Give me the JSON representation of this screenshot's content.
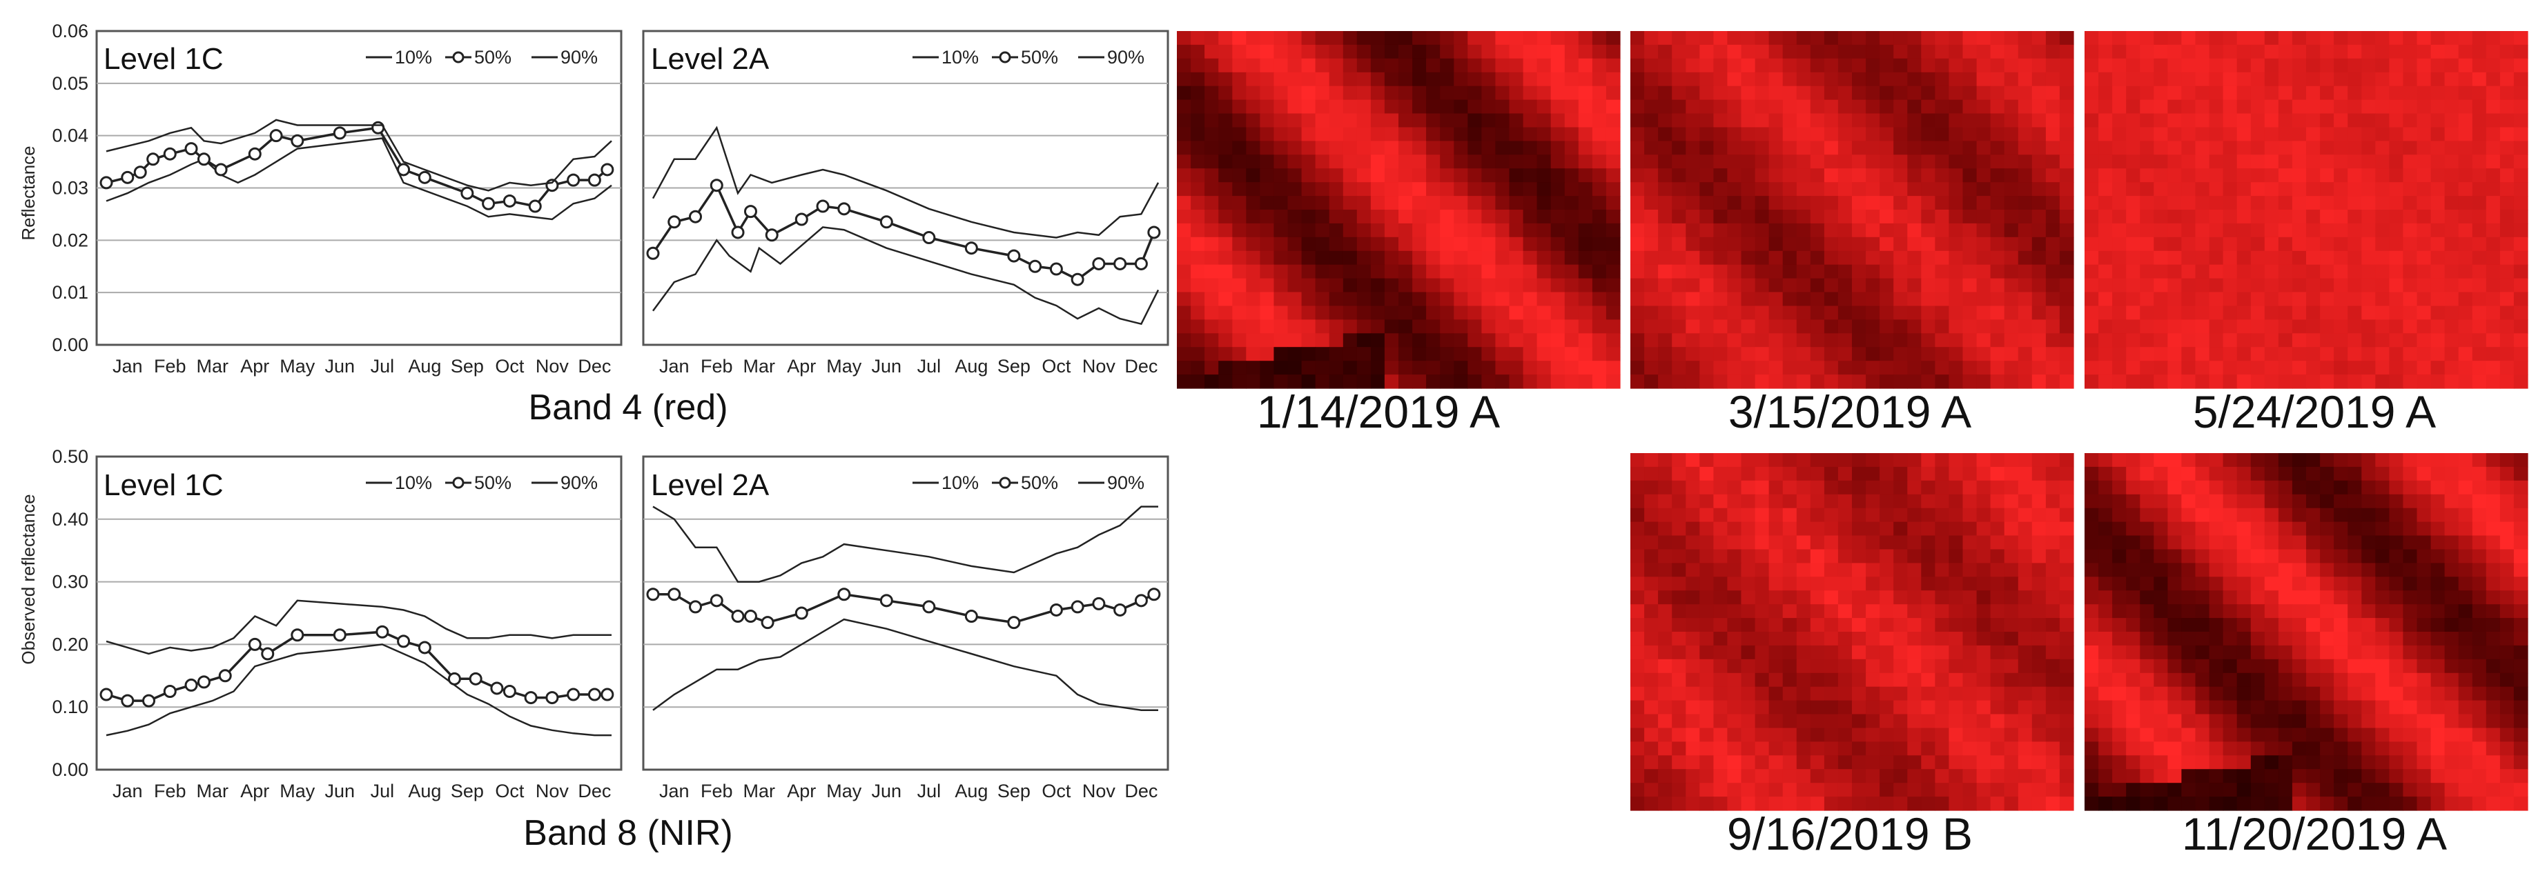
{
  "chart_data": [
    {
      "type": "line",
      "title": "Level 1C",
      "band": "Band 4 (red)",
      "ylabel": "Reflectance",
      "ylim": [
        0,
        0.06
      ],
      "yticks": [
        0.0,
        0.01,
        0.02,
        0.03,
        0.04,
        0.05,
        0.06
      ],
      "ytick_labels": [
        "0.00",
        "0.01",
        "0.02",
        "0.03",
        "0.04",
        "0.05",
        "0.06"
      ],
      "xlim": [
        0.5,
        12.4
      ],
      "xtick_labels": [
        "Jan",
        "Feb",
        "Mar",
        "Apr",
        "May",
        "Jun",
        "Jul",
        "Aug",
        "Sep",
        "Oct",
        "Nov",
        "Dec"
      ],
      "legend": [
        "10%",
        "50%",
        "90%"
      ],
      "series": [
        {
          "name": "10%",
          "x": [
            0.5,
            1.0,
            1.5,
            2.0,
            2.5,
            2.8,
            3.2,
            3.6,
            4.0,
            4.5,
            5.0,
            6.0,
            7.0,
            7.5,
            8.0,
            8.5,
            9.0,
            9.5,
            10.0,
            10.5,
            11.0,
            11.5,
            12.0,
            12.4
          ],
          "y": [
            0.0275,
            0.029,
            0.031,
            0.0325,
            0.0345,
            0.0355,
            0.0325,
            0.031,
            0.0325,
            0.035,
            0.0375,
            0.0385,
            0.0395,
            0.031,
            0.0295,
            0.028,
            0.0265,
            0.0245,
            0.025,
            0.0245,
            0.024,
            0.027,
            0.028,
            0.0305
          ]
        },
        {
          "name": "50%",
          "x": [
            0.5,
            1.0,
            1.3,
            1.6,
            2.0,
            2.5,
            2.8,
            3.2,
            4.0,
            4.5,
            5.0,
            6.0,
            6.9,
            7.5,
            8.0,
            9.0,
            9.5,
            10.0,
            10.6,
            11.0,
            11.5,
            12.0,
            12.3
          ],
          "y": [
            0.031,
            0.032,
            0.033,
            0.0355,
            0.0365,
            0.0375,
            0.0355,
            0.0335,
            0.0365,
            0.04,
            0.039,
            0.0405,
            0.0415,
            0.0335,
            0.032,
            0.029,
            0.027,
            0.0275,
            0.0265,
            0.0305,
            0.0315,
            0.0315,
            0.0335
          ],
          "markers": true
        },
        {
          "name": "90%",
          "x": [
            0.5,
            1.0,
            1.5,
            2.0,
            2.5,
            2.8,
            3.2,
            4.0,
            4.5,
            5.0,
            6.0,
            7.0,
            7.5,
            8.0,
            9.0,
            9.5,
            10.0,
            10.5,
            11.0,
            11.5,
            12.0,
            12.4
          ],
          "y": [
            0.037,
            0.038,
            0.039,
            0.0405,
            0.0415,
            0.039,
            0.0385,
            0.0405,
            0.043,
            0.042,
            0.042,
            0.042,
            0.035,
            0.0335,
            0.0305,
            0.0295,
            0.031,
            0.0305,
            0.031,
            0.0355,
            0.036,
            0.039
          ]
        }
      ]
    },
    {
      "type": "line",
      "title": "Level 2A",
      "band": "Band 4 (red)",
      "ylim": [
        0,
        0.06
      ],
      "yticks": [
        0.0,
        0.01,
        0.02,
        0.03,
        0.04,
        0.05,
        0.06
      ],
      "xlim": [
        0.5,
        12.4
      ],
      "xtick_labels": [
        "Jan",
        "Feb",
        "Mar",
        "Apr",
        "May",
        "Jun",
        "Jul",
        "Aug",
        "Sep",
        "Oct",
        "Nov",
        "Dec"
      ],
      "legend": [
        "10%",
        "50%",
        "90%"
      ],
      "series": [
        {
          "name": "10%",
          "x": [
            0.5,
            1.0,
            1.5,
            2.0,
            2.3,
            2.8,
            3.0,
            3.5,
            4.0,
            4.5,
            5.0,
            6.0,
            7.0,
            8.0,
            9.0,
            9.5,
            10.0,
            10.5,
            11.0,
            11.5,
            12.0,
            12.4
          ],
          "y": [
            0.0065,
            0.012,
            0.0135,
            0.02,
            0.017,
            0.014,
            0.0185,
            0.0155,
            0.019,
            0.0225,
            0.022,
            0.0185,
            0.016,
            0.0135,
            0.0115,
            0.009,
            0.0075,
            0.005,
            0.007,
            0.005,
            0.004,
            0.0105
          ]
        },
        {
          "name": "50%",
          "x": [
            0.5,
            1.0,
            1.5,
            2.0,
            2.5,
            2.8,
            3.3,
            4.0,
            4.5,
            5.0,
            6.0,
            7.0,
            8.0,
            9.0,
            9.5,
            10.0,
            10.5,
            11.0,
            11.5,
            12.0,
            12.3
          ],
          "y": [
            0.0175,
            0.0235,
            0.0245,
            0.0305,
            0.0215,
            0.0255,
            0.021,
            0.024,
            0.0265,
            0.026,
            0.0235,
            0.0205,
            0.0185,
            0.017,
            0.015,
            0.0145,
            0.0125,
            0.0155,
            0.0155,
            0.0155,
            0.0215
          ],
          "markers": true
        },
        {
          "name": "90%",
          "x": [
            0.5,
            1.0,
            1.5,
            2.0,
            2.5,
            2.8,
            3.3,
            4.0,
            4.5,
            5.0,
            6.0,
            7.0,
            8.0,
            9.0,
            9.5,
            10.0,
            10.5,
            11.0,
            11.5,
            12.0,
            12.4
          ],
          "y": [
            0.028,
            0.0355,
            0.0355,
            0.0415,
            0.029,
            0.0325,
            0.031,
            0.0325,
            0.0335,
            0.0325,
            0.0295,
            0.026,
            0.0235,
            0.0215,
            0.021,
            0.0205,
            0.0215,
            0.021,
            0.0245,
            0.025,
            0.031
          ]
        }
      ]
    },
    {
      "type": "line",
      "title": "Level 1C",
      "band": "Band 8 (NIR)",
      "ylabel": "Observed reflectance",
      "ylim": [
        0,
        0.5
      ],
      "yticks": [
        0.0,
        0.1,
        0.2,
        0.3,
        0.4,
        0.5
      ],
      "ytick_labels": [
        "0.00",
        "0.10",
        "0.20",
        "0.30",
        "0.40",
        "0.50"
      ],
      "xlim": [
        0.5,
        12.4
      ],
      "xtick_labels": [
        "Jan",
        "Feb",
        "Mar",
        "Apr",
        "May",
        "Jun",
        "Jul",
        "Aug",
        "Sep",
        "Oct",
        "Nov",
        "Dec"
      ],
      "legend": [
        "10%",
        "50%",
        "90%"
      ],
      "series": [
        {
          "name": "10%",
          "x": [
            0.5,
            1.0,
            1.5,
            2.0,
            2.5,
            3.0,
            3.5,
            4.0,
            4.5,
            5.0,
            6.0,
            7.0,
            7.5,
            8.0,
            8.5,
            9.0,
            9.5,
            10.0,
            10.5,
            11.0,
            11.5,
            12.0,
            12.4
          ],
          "y": [
            0.055,
            0.062,
            0.072,
            0.09,
            0.1,
            0.11,
            0.125,
            0.165,
            0.175,
            0.185,
            0.192,
            0.2,
            0.185,
            0.17,
            0.145,
            0.12,
            0.105,
            0.085,
            0.07,
            0.063,
            0.058,
            0.055,
            0.055
          ]
        },
        {
          "name": "50%",
          "x": [
            0.5,
            1.0,
            1.5,
            2.0,
            2.5,
            2.8,
            3.3,
            4.0,
            4.3,
            5.0,
            6.0,
            7.0,
            7.5,
            8.0,
            8.7,
            9.2,
            9.7,
            10.0,
            10.5,
            11.0,
            11.5,
            12.0,
            12.3
          ],
          "y": [
            0.12,
            0.11,
            0.11,
            0.125,
            0.135,
            0.14,
            0.15,
            0.2,
            0.185,
            0.215,
            0.215,
            0.22,
            0.205,
            0.195,
            0.145,
            0.145,
            0.13,
            0.125,
            0.115,
            0.115,
            0.12,
            0.12,
            0.12
          ],
          "markers": true
        },
        {
          "name": "90%",
          "x": [
            0.5,
            1.0,
            1.5,
            2.0,
            2.5,
            3.0,
            3.5,
            4.0,
            4.5,
            5.0,
            6.0,
            7.0,
            7.5,
            8.0,
            8.5,
            9.0,
            9.5,
            10.0,
            10.5,
            11.0,
            11.5,
            12.0,
            12.4
          ],
          "y": [
            0.205,
            0.195,
            0.185,
            0.195,
            0.19,
            0.195,
            0.21,
            0.245,
            0.23,
            0.27,
            0.265,
            0.26,
            0.255,
            0.245,
            0.225,
            0.21,
            0.21,
            0.215,
            0.215,
            0.21,
            0.215,
            0.215,
            0.215
          ]
        }
      ]
    },
    {
      "type": "line",
      "title": "Level 2A",
      "band": "Band 8 (NIR)",
      "ylim": [
        0,
        0.5
      ],
      "yticks": [
        0.0,
        0.1,
        0.2,
        0.3,
        0.4,
        0.5
      ],
      "xlim": [
        0.5,
        12.4
      ],
      "xtick_labels": [
        "Jan",
        "Feb",
        "Mar",
        "Apr",
        "May",
        "Jun",
        "Jul",
        "Aug",
        "Sep",
        "Oct",
        "Nov",
        "Dec"
      ],
      "legend": [
        "10%",
        "50%",
        "90%"
      ],
      "series": [
        {
          "name": "10%",
          "x": [
            0.5,
            1.0,
            1.5,
            2.0,
            2.5,
            3.0,
            3.5,
            4.0,
            4.5,
            5.0,
            6.0,
            7.0,
            8.0,
            9.0,
            10.0,
            10.5,
            11.0,
            11.5,
            12.0,
            12.4
          ],
          "y": [
            0.095,
            0.12,
            0.14,
            0.16,
            0.16,
            0.175,
            0.18,
            0.2,
            0.22,
            0.24,
            0.225,
            0.205,
            0.185,
            0.165,
            0.15,
            0.12,
            0.105,
            0.1,
            0.095,
            0.095
          ]
        },
        {
          "name": "50%",
          "x": [
            0.5,
            1.0,
            1.5,
            2.0,
            2.5,
            2.8,
            3.2,
            4.0,
            5.0,
            6.0,
            7.0,
            8.0,
            9.0,
            10.0,
            10.5,
            11.0,
            11.5,
            12.0,
            12.3
          ],
          "y": [
            0.28,
            0.28,
            0.26,
            0.27,
            0.245,
            0.245,
            0.235,
            0.25,
            0.28,
            0.27,
            0.26,
            0.245,
            0.235,
            0.255,
            0.26,
            0.265,
            0.255,
            0.27,
            0.28
          ],
          "markers": true
        },
        {
          "name": "90%",
          "x": [
            0.5,
            1.0,
            1.5,
            2.0,
            2.5,
            3.0,
            3.5,
            4.0,
            4.5,
            5.0,
            6.0,
            7.0,
            8.0,
            9.0,
            10.0,
            10.5,
            11.0,
            11.5,
            12.0,
            12.4
          ],
          "y": [
            0.42,
            0.4,
            0.355,
            0.355,
            0.3,
            0.3,
            0.31,
            0.33,
            0.34,
            0.36,
            0.35,
            0.34,
            0.325,
            0.315,
            0.345,
            0.355,
            0.375,
            0.39,
            0.42,
            0.42
          ]
        }
      ]
    }
  ],
  "captions": {
    "band4": "Band 4 (red)",
    "band8": "Band 8 (NIR)"
  },
  "images": [
    {
      "date": "1/14/2019 A",
      "pattern": "dark-diagonal"
    },
    {
      "date": "3/15/2019 A",
      "pattern": "medium-diagonal"
    },
    {
      "date": "5/24/2019 A",
      "pattern": "bright-uniform"
    },
    {
      "date": "9/16/2019 B",
      "pattern": "medium-mottled"
    },
    {
      "date": "11/20/2019 A",
      "pattern": "dark-diagonal"
    }
  ],
  "colors": {
    "line": "#222222",
    "grid": "#aaaaaa",
    "panel_border": "#555555",
    "image_red_dark": "#2a0000",
    "image_red_bright": "#ff2020"
  }
}
